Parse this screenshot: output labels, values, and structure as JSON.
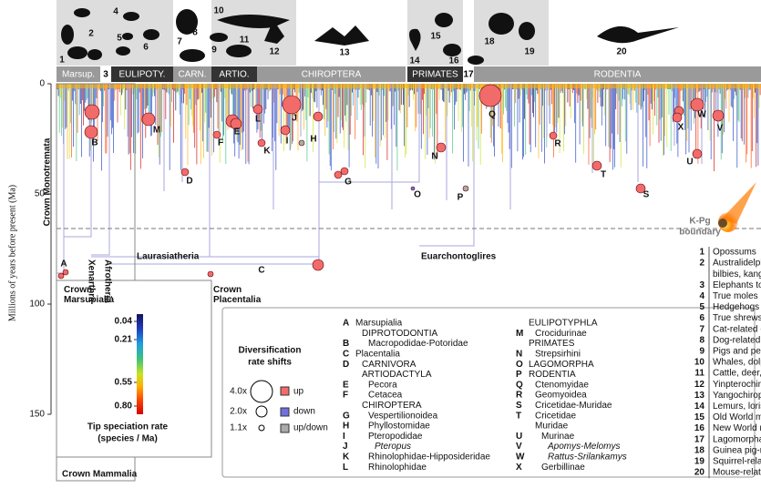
{
  "axis": {
    "label": "Millions of years before present (Ma)",
    "ylim": [
      0,
      150
    ],
    "yticks": [
      0,
      50,
      100,
      150
    ]
  },
  "kpg": [
    "K-Pg",
    "boundary"
  ],
  "header": [
    "Marsup.",
    "3",
    "EULIPOTY.",
    "CARN.",
    "ARTIO.",
    "CHIROPTERA",
    "PRIMATES",
    "17",
    "RODENTIA"
  ],
  "silhouette_numbers": [
    "1",
    "2",
    "4",
    "5",
    "6",
    "7",
    "8",
    "9",
    "10",
    "11",
    "12",
    "13",
    "14",
    "15",
    "16",
    "18",
    "19",
    "20"
  ],
  "clades": [
    "Crown Monotremata",
    "Crown Marsupialia",
    "Xenarthra",
    "Afrotheria",
    "Laurasiatheria",
    "Crown Placentalia",
    "Euarchontoglires",
    "Crown Mammalia"
  ],
  "shifts": [
    "A",
    "B",
    "C",
    "D",
    "E",
    "F",
    "G",
    "H",
    "I",
    "J",
    "K",
    "L",
    "M",
    "N",
    "O",
    "P",
    "Q",
    "R",
    "S",
    "T",
    "U",
    "V",
    "W",
    "X"
  ],
  "colorbar": {
    "title": [
      "Tip speciation rate",
      "(species / Ma)"
    ],
    "ticks": [
      "0.04",
      "0.21",
      "0.55",
      "0.80"
    ]
  },
  "shift_legend": {
    "title": [
      "Diversification",
      "rate shifts"
    ],
    "sizes": [
      "4.0x",
      "2.0x",
      "1.1x"
    ],
    "types": [
      "up",
      "down",
      "up/down"
    ]
  },
  "key": [
    [
      {
        "letter": "A",
        "name": "Marsupialia"
      },
      {
        "letter": null,
        "name": "DIPROTODONTIA"
      },
      {
        "letter": "B",
        "name": "Macropodidae-Potoridae"
      },
      {
        "letter": "C",
        "name": "Placentalia"
      },
      {
        "letter": "D",
        "name": "CARNIVORA"
      },
      {
        "letter": null,
        "name": "ARTIODACTYLA"
      },
      {
        "letter": "E",
        "name": "Pecora"
      },
      {
        "letter": "F",
        "name": "Cetacea"
      },
      {
        "letter": null,
        "name": "CHIROPTERA"
      },
      {
        "letter": "G",
        "name": "Vespertilionoidea"
      },
      {
        "letter": "H",
        "name": "Phyllostomidae"
      },
      {
        "letter": "I",
        "name": "Pteropodidae"
      },
      {
        "letter": "J",
        "name": "Pteropus"
      },
      {
        "letter": "K",
        "name": "Rhinolophidae-Hipposideridae"
      },
      {
        "letter": "L",
        "name": "Rhinolophidae"
      }
    ],
    [
      {
        "letter": null,
        "name": "EULIPOTYPHLA"
      },
      {
        "letter": "M",
        "name": "Crocidurinae"
      },
      {
        "letter": null,
        "name": "PRIMATES"
      },
      {
        "letter": "N",
        "name": "Strepsirhini"
      },
      {
        "letter": "O",
        "name": "LAGOMORPHA"
      },
      {
        "letter": "P",
        "name": "RODENTIA"
      },
      {
        "letter": "Q",
        "name": "Ctenomyidae"
      },
      {
        "letter": "R",
        "name": "Geomyoidea"
      },
      {
        "letter": "S",
        "name": "Cricetidae-Muridae"
      },
      {
        "letter": "T",
        "name": "Cricetidae"
      },
      {
        "letter": null,
        "name": "Muridae"
      },
      {
        "letter": "U",
        "name": "Murinae"
      },
      {
        "letter": "V",
        "name": "Apomys-Melomys"
      },
      {
        "letter": "W",
        "name": "Rattus-Srilankamys"
      },
      {
        "letter": "X",
        "name": "Gerbillinae"
      }
    ]
  ],
  "groups": [
    {
      "number": "1",
      "name": [
        "Opossums"
      ]
    },
    {
      "number": "2",
      "name": [
        "Australidelphia (dunnarts,",
        "bilbies, kangaroos, koalas)"
      ]
    },
    {
      "number": "3",
      "name": [
        "Elephants to armadillos"
      ]
    },
    {
      "number": "4",
      "name": [
        "True moles"
      ]
    },
    {
      "number": "5",
      "name": [
        "Hedgehogs"
      ]
    },
    {
      "number": "6",
      "name": [
        "True shrews"
      ]
    },
    {
      "number": "7",
      "name": [
        "Cat-related (civets, hyenas)"
      ]
    },
    {
      "number": "8",
      "name": [
        "Dog-related (bears, seals)"
      ]
    },
    {
      "number": "9",
      "name": [
        "Pigs and peccaries"
      ]
    },
    {
      "number": "10",
      "name": [
        "Whales, dolphins, hippos"
      ]
    },
    {
      "number": "11",
      "name": [
        "Cattle, deer, giraffes"
      ]
    },
    {
      "number": "12",
      "name": [
        "Yinpterochiroptera"
      ]
    },
    {
      "number": "13",
      "name": [
        "Yangochiroptera"
      ]
    },
    {
      "number": "14",
      "name": [
        "Lemurs, lorises, galagos"
      ]
    },
    {
      "number": "15",
      "name": [
        "Old World monkeys, apes"
      ]
    },
    {
      "number": "16",
      "name": [
        "New World monkeys"
      ]
    },
    {
      "number": "17",
      "name": [
        "Lagomorpha"
      ]
    },
    {
      "number": "18",
      "name": [
        "Guinea pig-related"
      ]
    },
    {
      "number": "19",
      "name": [
        "Squirrel-related"
      ]
    },
    {
      "number": "20",
      "name": [
        "Mouse-related"
      ]
    }
  ]
}
